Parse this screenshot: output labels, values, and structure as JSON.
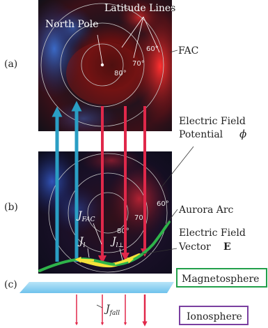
{
  "panel_labels": [
    "(a)",
    "(b)",
    "(c)"
  ],
  "panel_a": {
    "latitude_lines": "Latitude Lines",
    "north_pole": "North Pole",
    "deg_60": "60°",
    "deg_70": "70°",
    "deg_80": "80°",
    "fac": "FAC"
  },
  "potential": {
    "line1": "Electric Field",
    "line2": "Potential",
    "symbol": "ϕ"
  },
  "panel_b": {
    "deg_60": "60°",
    "deg_70": "70°",
    "deg_80": "80°",
    "j_fac_main": "J",
    "j_fac_sub": "FAC",
    "j_l_main": "J",
    "j_l_sub": "l",
    "j_ll_main": "J",
    "j_ll_sub": "l⊥",
    "aurora_arc": "Aurora Arc",
    "efield_line1": "Electric Field",
    "efield_line2": "Vector",
    "efield_symbol": "E"
  },
  "boxes": {
    "magnetosphere": "Magnetosphere",
    "ionosphere": "Ionosphere"
  },
  "j_fall_main": "J",
  "j_fall_sub": "fall",
  "colors": {
    "upward_arrow": "#2a9ec4",
    "downward_arrow": "#e0284a",
    "aurora_arc": "#2fb34a",
    "current_highlight": "#f5e23a",
    "magnetosphere_border": "#22a04a",
    "ionosphere_border": "#7a3fa0",
    "ionosphere_sheet": "#8fd0f0"
  }
}
